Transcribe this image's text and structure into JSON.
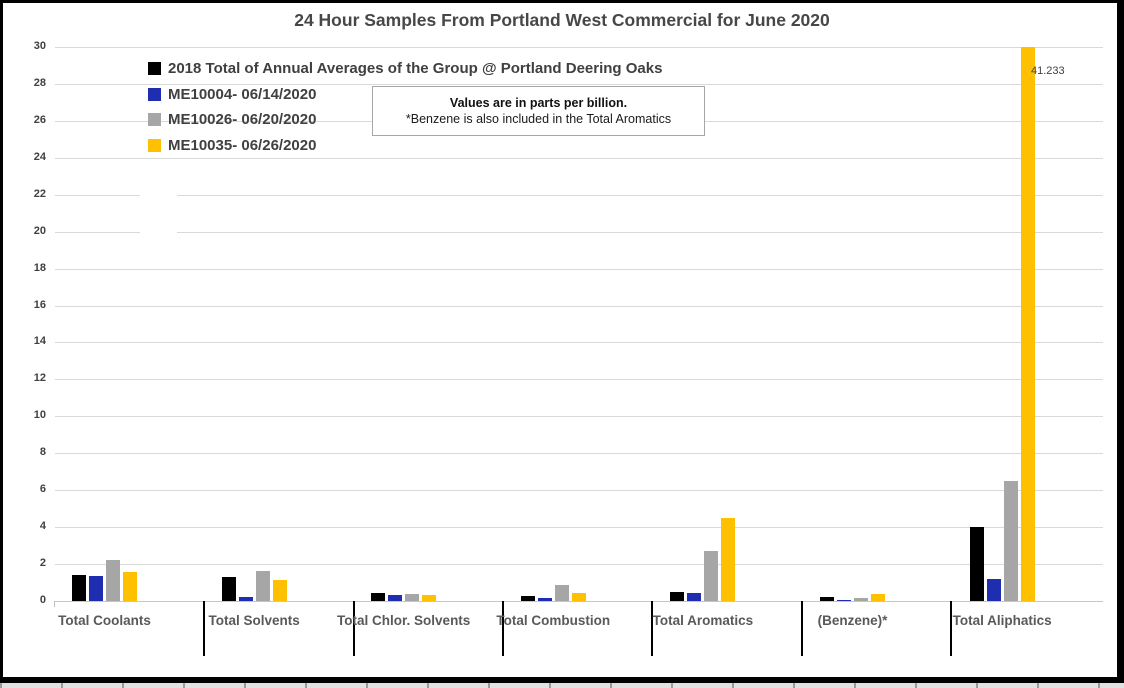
{
  "title": "24 Hour Samples From Portland West Commercial for June 2020",
  "annotation": {
    "line1": "Values are in parts per billion.",
    "line2": "*Benzene is also included in the Total Aromatics"
  },
  "clipped_bar_label": "41.233",
  "colors": {
    "series_black": "#000000",
    "series_blue": "#1F2DB0",
    "series_gray": "#A6A6A6",
    "series_yellow": "#FFC000",
    "gridline": "#D9D9D9",
    "axis_text": "#404040",
    "category_text": "#595959"
  },
  "chart_data": {
    "type": "bar",
    "title": "24 Hour Samples From Portland West Commercial for June 2020",
    "categories": [
      "Total Coolants",
      "Total Solvents",
      "Total Chlor. Solvents",
      "Total Combustion",
      "Total Aromatics",
      "(Benzene)*",
      "Total Aliphatics"
    ],
    "series": [
      {
        "name": "2018 Total of Annual Averages of the Group @ Portland Deering Oaks",
        "color": "#000000",
        "values": [
          1.4,
          1.3,
          0.45,
          0.25,
          0.5,
          0.2,
          4.0
        ]
      },
      {
        "name": "ME10004- 06/14/2020",
        "color": "#1F2DB0",
        "values": [
          1.35,
          0.2,
          0.3,
          0.15,
          0.45,
          0.05,
          1.2
        ]
      },
      {
        "name": "ME10026- 06/20/2020",
        "color": "#A6A6A6",
        "values": [
          2.2,
          1.6,
          0.4,
          0.85,
          2.7,
          0.15,
          6.5
        ]
      },
      {
        "name": "ME10035- 06/26/2020",
        "color": "#FFC000",
        "values": [
          1.55,
          1.15,
          0.35,
          0.45,
          4.5,
          0.4,
          41.233
        ]
      }
    ],
    "ylabel": "parts per billion",
    "xlabel": "",
    "ylim": [
      0,
      30
    ],
    "ytick_step": 2,
    "grid": true,
    "legend_position": "top-left",
    "notes": "Yellow bar for Total Aliphatics (41.233 ppb) is clipped at the 30 ppb axis maximum and labeled with its value."
  }
}
